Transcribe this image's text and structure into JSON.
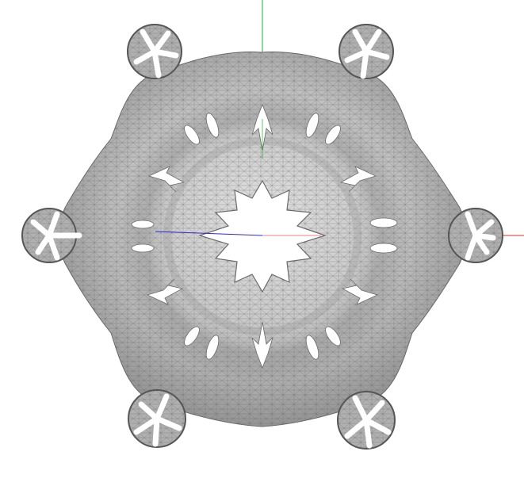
{
  "viewport": {
    "background": "#ffffff"
  },
  "model": {
    "kind": "triangulated-surface-mesh",
    "symmetry": "six-fold",
    "surface_fill": "#b8b8b8",
    "surface_highlight": "#e2e2e2",
    "surface_shadow": "#8a8a8a",
    "wire_color": "#5e5e5e",
    "hole_color": "#ffffff",
    "outer_lobes": 6,
    "inner_holes": 6,
    "slot_holes": 12
  },
  "axes": {
    "x_color": "#e0302a",
    "y_color": "#23a83a",
    "z_color": "#2a2ad8"
  }
}
